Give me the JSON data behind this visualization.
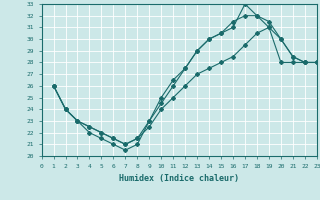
{
  "xlabel": "Humidex (Indice chaleur)",
  "background_color": "#cce8e8",
  "grid_color": "#ffffff",
  "line_color": "#1a6b6b",
  "xmin": 0,
  "xmax": 23,
  "ymin": 20,
  "ymax": 33,
  "line1_x": [
    1,
    2,
    3,
    4,
    5,
    6,
    7,
    8,
    9,
    10,
    11,
    12,
    13,
    14,
    15,
    16,
    17,
    18,
    19,
    20,
    21,
    22,
    23
  ],
  "line1_y": [
    26,
    24,
    23,
    22,
    21.5,
    21,
    20.5,
    21,
    23,
    25,
    26.5,
    27.5,
    29,
    30,
    30.5,
    31,
    33,
    32,
    31,
    30,
    28.5,
    28,
    28
  ],
  "line2_x": [
    1,
    2,
    3,
    4,
    5,
    6,
    7,
    8,
    9,
    10,
    11,
    12,
    13,
    14,
    15,
    16,
    17,
    18,
    19,
    20,
    21,
    22,
    23
  ],
  "line2_y": [
    26,
    24,
    23,
    22.5,
    22,
    21.5,
    21,
    21.5,
    22.5,
    24,
    25,
    26,
    27,
    27.5,
    28,
    28.5,
    29.5,
    30.5,
    31,
    28,
    28,
    28,
    28
  ],
  "line3_x": [
    1,
    2,
    3,
    4,
    5,
    6,
    7,
    8,
    9,
    10,
    11,
    12,
    13,
    14,
    15,
    16,
    17,
    18,
    19,
    20,
    21,
    22,
    23
  ],
  "line3_y": [
    26,
    24,
    23,
    22.5,
    22,
    21.5,
    21,
    21.5,
    23,
    24.5,
    26,
    27.5,
    29,
    30,
    30.5,
    31.5,
    32,
    32,
    31.5,
    30,
    28.5,
    28,
    28
  ]
}
